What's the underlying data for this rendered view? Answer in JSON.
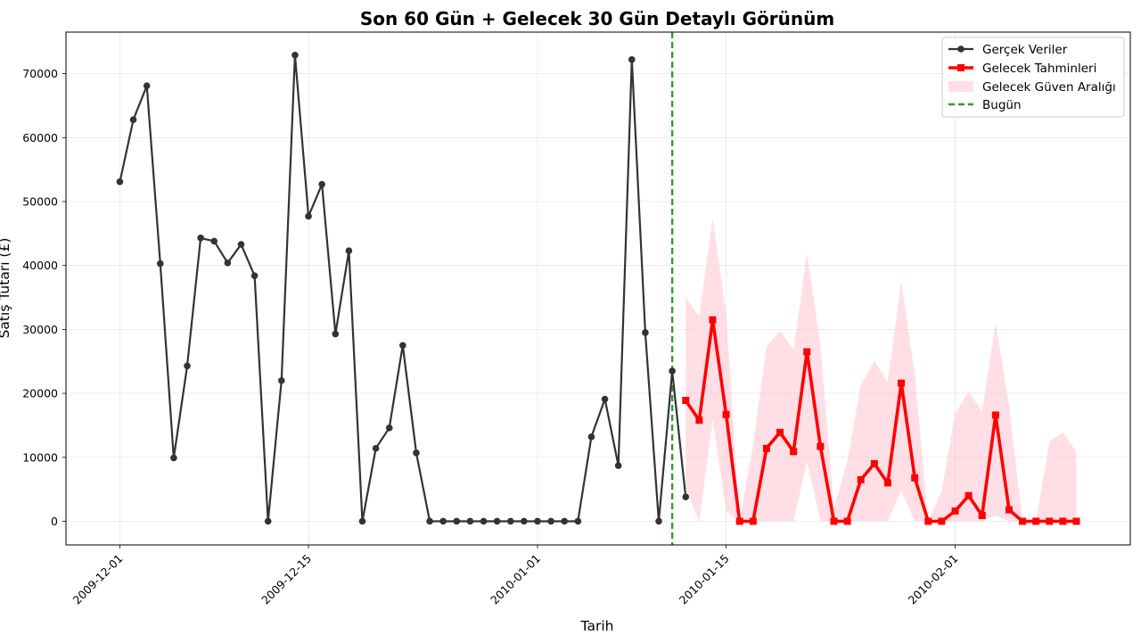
{
  "chart_data": {
    "type": "line",
    "title": "Son 60 Gün + Gelecek 30 Gün Detaylı Görünüm",
    "xlabel": "Tarih",
    "ylabel": "Satış Tutarı (£)",
    "x_range": [
      "2009-11-27",
      "2010-02-14"
    ],
    "ylim": [
      -3700,
      76500
    ],
    "yticks": [
      0,
      10000,
      20000,
      30000,
      40000,
      50000,
      60000,
      70000
    ],
    "xticks": [
      "2009-12-01",
      "2009-12-15",
      "2010-01-01",
      "2010-01-15",
      "2010-02-01"
    ],
    "grid": true,
    "legend_position": "top-right",
    "legend": [
      "Gerçek Veriler",
      "Gelecek Tahminleri",
      "Gelecek Güven Aralığı",
      "Bugün"
    ],
    "today": "2010-01-11",
    "colors": {
      "actual": "#333333",
      "forecast": "#ff0000",
      "interval": "#ffc0cb",
      "today": "#2ca02c"
    },
    "actual": {
      "start": "2009-12-01",
      "values": [
        53100,
        62800,
        68100,
        40300,
        9900,
        24300,
        44300,
        43800,
        40400,
        43300,
        38400,
        0,
        22000,
        72900,
        47700,
        52700,
        29300,
        42300,
        0,
        11400,
        14600,
        27500,
        10700,
        0,
        0,
        0,
        0,
        0,
        0,
        0,
        0,
        0,
        0,
        0,
        0,
        13200,
        19100,
        8700,
        72200,
        29500,
        0,
        23500,
        3800
      ]
    },
    "forecast": {
      "start": "2010-01-12",
      "values": [
        18900,
        15800,
        31500,
        16700,
        0,
        0,
        11400,
        13900,
        10900,
        26500,
        11700,
        0,
        0,
        6500,
        9000,
        6000,
        21600,
        6800,
        0,
        0,
        1600,
        4000,
        900,
        16600,
        1800,
        0,
        0,
        0,
        0,
        0
      ],
      "lower": [
        5000,
        0,
        15900,
        1500,
        0,
        0,
        0,
        0,
        0,
        9400,
        0,
        0,
        0,
        0,
        0,
        0,
        4800,
        0,
        0,
        0,
        0,
        0,
        0,
        900,
        0,
        0,
        0,
        0,
        0,
        0
      ],
      "upper": [
        35000,
        32000,
        47400,
        32500,
        0,
        12000,
        27300,
        29800,
        26800,
        41900,
        27500,
        2000,
        9500,
        21300,
        25100,
        21800,
        37600,
        23000,
        0,
        4800,
        16800,
        20300,
        17200,
        31100,
        18000,
        0,
        0,
        12500,
        13900,
        10800
      ]
    }
  }
}
